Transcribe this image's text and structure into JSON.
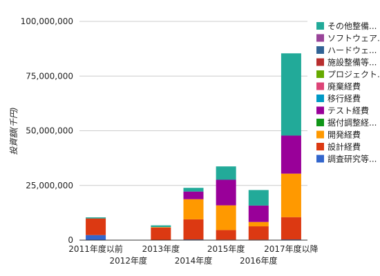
{
  "chart_data": {
    "type": "bar",
    "stacked": true,
    "title": "",
    "xlabel": "",
    "ylabel": "投資額(千円)",
    "ylim": [
      0,
      100000000
    ],
    "yticks": [
      "0",
      "25,000,000",
      "50,000,000",
      "75,000,000",
      "100,000,000"
    ],
    "grid": true,
    "legend_position": "right",
    "categories": [
      "2011年度以前",
      "2012年度",
      "2013年度",
      "2014年度",
      "2015年度",
      "2016年度",
      "2017年度以降"
    ],
    "series": [
      {
        "name": "調査研究等...",
        "color": "#3366cc",
        "values": [
          2300000,
          0,
          150000,
          300000,
          200000,
          200000,
          300000
        ]
      },
      {
        "name": "設計経費",
        "color": "#dc3912",
        "values": [
          7600000,
          0,
          5600000,
          9200000,
          4400000,
          6100000,
          10200000
        ]
      },
      {
        "name": "開発経費",
        "color": "#ff9900",
        "values": [
          0,
          0,
          200000,
          9200000,
          11300000,
          2000000,
          19900000
        ]
      },
      {
        "name": "据付調整経...",
        "color": "#109618",
        "values": [
          0,
          0,
          0,
          0,
          0,
          0,
          0
        ]
      },
      {
        "name": "テスト経費",
        "color": "#990099",
        "values": [
          0,
          0,
          0,
          3500000,
          11700000,
          7500000,
          17400000
        ]
      },
      {
        "name": "移行経費",
        "color": "#0099c6",
        "values": [
          0,
          0,
          0,
          0,
          0,
          0,
          0
        ]
      },
      {
        "name": "廃棄経費",
        "color": "#dd4477",
        "values": [
          0,
          0,
          0,
          0,
          0,
          0,
          0
        ]
      },
      {
        "name": "プロジェクト...",
        "color": "#66aa00",
        "values": [
          0,
          0,
          0,
          0,
          0,
          0,
          0
        ]
      },
      {
        "name": "施設整備等...",
        "color": "#b82e2e",
        "values": [
          0,
          0,
          0,
          0,
          0,
          0,
          0
        ]
      },
      {
        "name": "ハードウェ...",
        "color": "#316395",
        "values": [
          0,
          0,
          0,
          0,
          0,
          0,
          0
        ]
      },
      {
        "name": "ソフトウェア...",
        "color": "#994499",
        "values": [
          0,
          0,
          0,
          0,
          0,
          0,
          0
        ]
      },
      {
        "name": "その他整備...",
        "color": "#22aa99",
        "values": [
          500000,
          0,
          800000,
          1700000,
          6100000,
          7100000,
          37600000
        ]
      }
    ]
  }
}
